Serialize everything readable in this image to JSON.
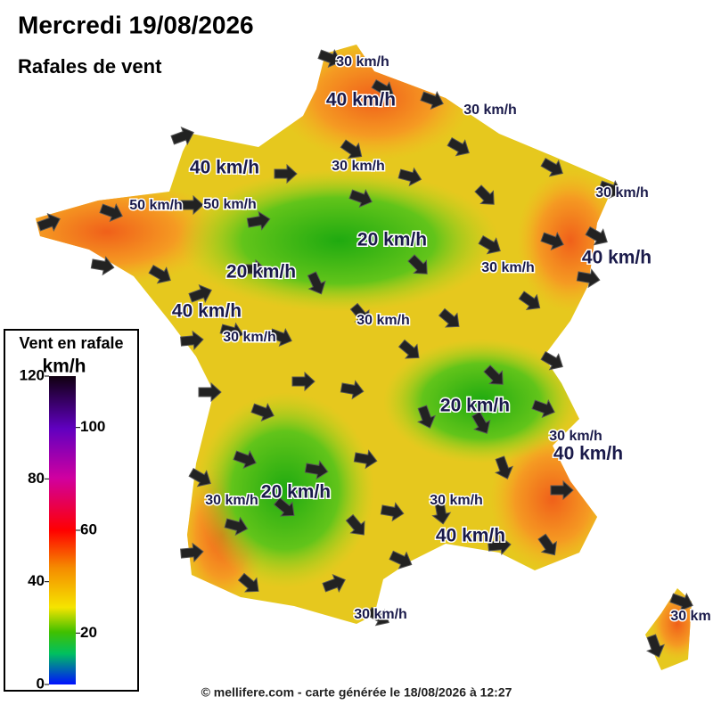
{
  "header": {
    "title": "Mercredi 19/08/2026",
    "subtitle": "Rafales de vent"
  },
  "legend": {
    "title": "Vent en rafale",
    "unit": "km/h",
    "range": [
      0,
      120
    ],
    "ticks": [
      0,
      20,
      40,
      60,
      80,
      100,
      120
    ]
  },
  "contour_labels": [
    "30 km/h",
    "40 km/h",
    "30 km/h",
    "40 km/h",
    "30 km/h",
    "50 km/h",
    "50 km/h",
    "30 km/h",
    "20 km/h",
    "30 km/h",
    "40 km/h",
    "20 km/h",
    "40 km/h",
    "30 km/h",
    "30 km/h",
    "20 km/h",
    "30 km/h",
    "40 km/h",
    "20 km/h",
    "30 km/h",
    "30 km/h",
    "40 km/h",
    "30 km/h",
    "30 km"
  ],
  "footer": "© mellifere.com - carte générée le 18/08/2026 à 12:27"
}
